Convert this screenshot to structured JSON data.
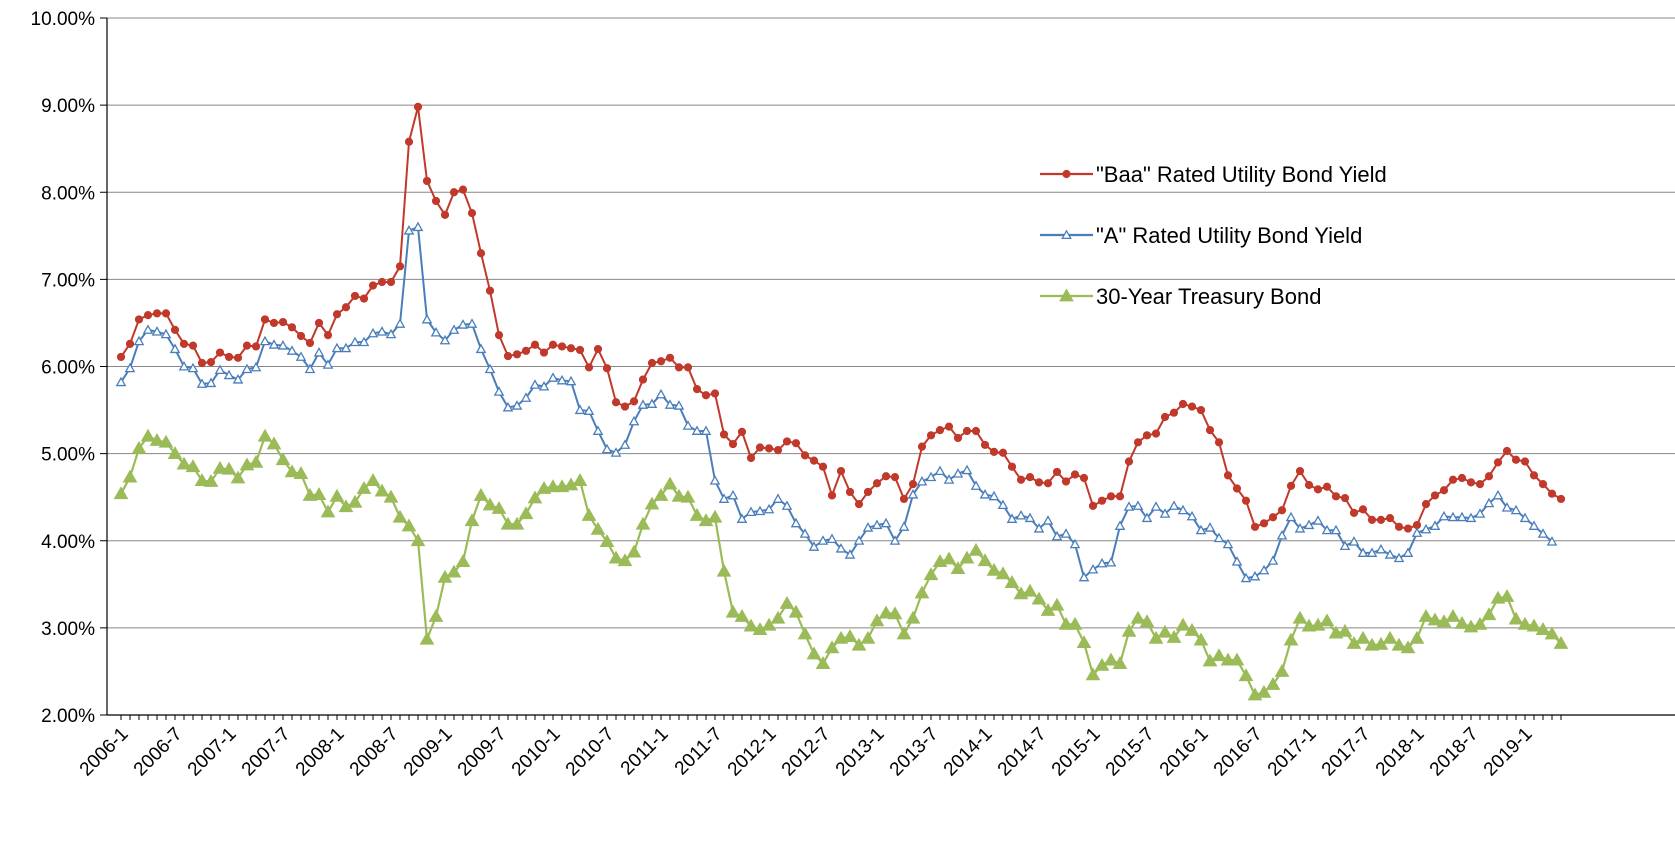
{
  "chart_data": {
    "type": "line",
    "title": "",
    "xlabel": "",
    "ylabel": "",
    "ylim": [
      0.02,
      0.1
    ],
    "y_tick_labels": [
      "2.00%",
      "3.00%",
      "4.00%",
      "5.00%",
      "6.00%",
      "7.00%",
      "8.00%",
      "9.00%",
      "10.00%"
    ],
    "x_tick_labels": [
      "2006-1",
      "2006-7",
      "2007-1",
      "2007-7",
      "2008-1",
      "2008-7",
      "2009-1",
      "2009-7",
      "2010-1",
      "2010-7",
      "2011-1",
      "2011-7",
      "2012-1",
      "2012-7",
      "2013-1",
      "2013-7",
      "2014-1",
      "2014-7",
      "2015-1",
      "2015-7",
      "2016-1",
      "2016-7",
      "2017-1",
      "2017-7",
      "2018-1",
      "2018-7",
      "2019-1"
    ],
    "x_start": "2006-1",
    "x_step": "1 month",
    "grid": "horizontal",
    "legend": "right",
    "colors": {
      "baa": "#c0392b",
      "a": "#4a7ebb",
      "treasury": "#9bbb59",
      "axis": "#000000",
      "grid": "#878787"
    },
    "series": [
      {
        "name": "\"Baa\" Rated Utility Bond Yield",
        "key": "baa",
        "marker": "circle",
        "values": [
          0.0611,
          0.0626,
          0.0654,
          0.0659,
          0.0661,
          0.0661,
          0.0642,
          0.0626,
          0.0624,
          0.0604,
          0.0605,
          0.0616,
          0.0611,
          0.061,
          0.0624,
          0.0623,
          0.0654,
          0.065,
          0.0651,
          0.0645,
          0.0635,
          0.0627,
          0.065,
          0.0636,
          0.066,
          0.0668,
          0.0681,
          0.0678,
          0.0693,
          0.0697,
          0.0697,
          0.0715,
          0.0858,
          0.0898,
          0.0813,
          0.079,
          0.0774,
          0.08,
          0.0803,
          0.0776,
          0.073,
          0.0687,
          0.0636,
          0.0612,
          0.0614,
          0.0618,
          0.0625,
          0.0616,
          0.0625,
          0.0623,
          0.0621,
          0.0619,
          0.0599,
          0.062,
          0.0598,
          0.0559,
          0.0554,
          0.056,
          0.0585,
          0.0604,
          0.0606,
          0.061,
          0.0599,
          0.0599,
          0.0574,
          0.0567,
          0.0569,
          0.0522,
          0.0511,
          0.0525,
          0.0495,
          0.0507,
          0.0506,
          0.0504,
          0.0514,
          0.0512,
          0.0498,
          0.0492,
          0.0485,
          0.0452,
          0.048,
          0.0456,
          0.0442,
          0.0456,
          0.0466,
          0.0474,
          0.0473,
          0.0448,
          0.0465,
          0.0508,
          0.0521,
          0.0527,
          0.0531,
          0.0518,
          0.0526,
          0.0526,
          0.051,
          0.0502,
          0.0501,
          0.0485,
          0.047,
          0.0473,
          0.0467,
          0.0466,
          0.0479,
          0.0468,
          0.0476,
          0.0472,
          0.044,
          0.0446,
          0.0451,
          0.0451,
          0.0491,
          0.0513,
          0.0521,
          0.0523,
          0.0542,
          0.0547,
          0.0557,
          0.0554,
          0.055,
          0.0527,
          0.0513,
          0.0475,
          0.046,
          0.0446,
          0.0416,
          0.042,
          0.0427,
          0.0435,
          0.0463,
          0.048,
          0.0464,
          0.0459,
          0.0462,
          0.0451,
          0.0449,
          0.0432,
          0.0436,
          0.0424,
          0.0424,
          0.0426,
          0.0416,
          0.0414,
          0.0418,
          0.0442,
          0.0452,
          0.0458,
          0.047,
          0.0472,
          0.0467,
          0.0465,
          0.0474,
          0.049,
          0.0503,
          0.0493,
          0.0491,
          0.0475,
          0.0465,
          0.0454,
          0.0448
        ]
      },
      {
        "name": "\"A\" Rated Utility Bond Yield",
        "key": "a",
        "marker": "triangle-open",
        "values": [
          0.0582,
          0.0598,
          0.0629,
          0.0642,
          0.064,
          0.0637,
          0.062,
          0.06,
          0.0598,
          0.058,
          0.0581,
          0.0596,
          0.059,
          0.0585,
          0.0597,
          0.0599,
          0.0629,
          0.0625,
          0.0624,
          0.0618,
          0.0611,
          0.0597,
          0.0616,
          0.0602,
          0.0621,
          0.0621,
          0.0628,
          0.0628,
          0.0638,
          0.064,
          0.0637,
          0.0649,
          0.0756,
          0.076,
          0.0654,
          0.0639,
          0.063,
          0.0642,
          0.0648,
          0.0649,
          0.062,
          0.0597,
          0.0571,
          0.0553,
          0.0555,
          0.0564,
          0.0579,
          0.0577,
          0.0587,
          0.0584,
          0.0583,
          0.055,
          0.0549,
          0.0526,
          0.0505,
          0.0501,
          0.051,
          0.0537,
          0.0556,
          0.0557,
          0.0568,
          0.0556,
          0.0555,
          0.0532,
          0.0526,
          0.0526,
          0.0469,
          0.0448,
          0.0452,
          0.0425,
          0.0433,
          0.0434,
          0.0436,
          0.0448,
          0.044,
          0.042,
          0.0408,
          0.0393,
          0.04,
          0.0402,
          0.0391,
          0.0384,
          0.04,
          0.0415,
          0.0418,
          0.042,
          0.04,
          0.0416,
          0.0453,
          0.0468,
          0.0473,
          0.048,
          0.047,
          0.0477,
          0.0481,
          0.0463,
          0.0453,
          0.0451,
          0.0441,
          0.0425,
          0.0429,
          0.0426,
          0.0414,
          0.0423,
          0.0405,
          0.0408,
          0.0396,
          0.0358,
          0.0367,
          0.0374,
          0.0375,
          0.0417,
          0.0439,
          0.044,
          0.0426,
          0.0439,
          0.0431,
          0.044,
          0.0435,
          0.0428,
          0.0412,
          0.0415,
          0.0403,
          0.0396,
          0.0376,
          0.0357,
          0.0359,
          0.0366,
          0.0377,
          0.0406,
          0.0427,
          0.0414,
          0.0418,
          0.0423,
          0.0412,
          0.0412,
          0.0394,
          0.0399,
          0.0386,
          0.0386,
          0.039,
          0.0384,
          0.038,
          0.0386,
          0.0409,
          0.0413,
          0.0417,
          0.0428,
          0.0427,
          0.0427,
          0.0426,
          0.0431,
          0.0443,
          0.0452,
          0.0438,
          0.0435,
          0.0426,
          0.0417,
          0.0408,
          0.0399
        ]
      },
      {
        "name": "30-Year Treasury Bond",
        "key": "treasury",
        "marker": "triangle-filled",
        "values": [
          0.0454,
          0.0473,
          0.0506,
          0.052,
          0.0515,
          0.0513,
          0.05,
          0.0488,
          0.0485,
          0.0469,
          0.0468,
          0.0483,
          0.0482,
          0.0472,
          0.0487,
          0.049,
          0.052,
          0.0511,
          0.0493,
          0.0479,
          0.0477,
          0.0452,
          0.0453,
          0.0433,
          0.0451,
          0.0439,
          0.0444,
          0.046,
          0.0469,
          0.0457,
          0.045,
          0.0427,
          0.0417,
          0.04,
          0.0287,
          0.0313,
          0.0358,
          0.0364,
          0.0376,
          0.0423,
          0.0452,
          0.0441,
          0.0437,
          0.0419,
          0.0419,
          0.0431,
          0.0449,
          0.046,
          0.0462,
          0.0462,
          0.0464,
          0.0469,
          0.0429,
          0.0413,
          0.0399,
          0.038,
          0.0377,
          0.0387,
          0.0419,
          0.0442,
          0.0452,
          0.0465,
          0.0451,
          0.045,
          0.0429,
          0.0423,
          0.0427,
          0.0365,
          0.0318,
          0.0313,
          0.0302,
          0.0298,
          0.0303,
          0.0311,
          0.0328,
          0.0318,
          0.0293,
          0.027,
          0.0259,
          0.0277,
          0.0288,
          0.029,
          0.028,
          0.0288,
          0.0308,
          0.0317,
          0.0316,
          0.0293,
          0.0311,
          0.034,
          0.0361,
          0.0376,
          0.0379,
          0.0368,
          0.038,
          0.0389,
          0.0377,
          0.0366,
          0.0362,
          0.0352,
          0.0339,
          0.0342,
          0.0333,
          0.032,
          0.0326,
          0.0304,
          0.0304,
          0.0283,
          0.0246,
          0.0257,
          0.0263,
          0.0259,
          0.0296,
          0.0311,
          0.0307,
          0.0288,
          0.0295,
          0.0289,
          0.0303,
          0.0297,
          0.0286,
          0.0262,
          0.0268,
          0.0263,
          0.0263,
          0.0245,
          0.0223,
          0.0226,
          0.0235,
          0.025,
          0.0286,
          0.0311,
          0.0302,
          0.0303,
          0.0308,
          0.0294,
          0.0296,
          0.0282,
          0.0288,
          0.028,
          0.0281,
          0.0288,
          0.028,
          0.0277,
          0.0288,
          0.0313,
          0.0309,
          0.0307,
          0.0313,
          0.0305,
          0.0301,
          0.0304,
          0.0315,
          0.0334,
          0.0336,
          0.031,
          0.0304,
          0.0302,
          0.0298,
          0.0293,
          0.0282
        ]
      }
    ]
  }
}
